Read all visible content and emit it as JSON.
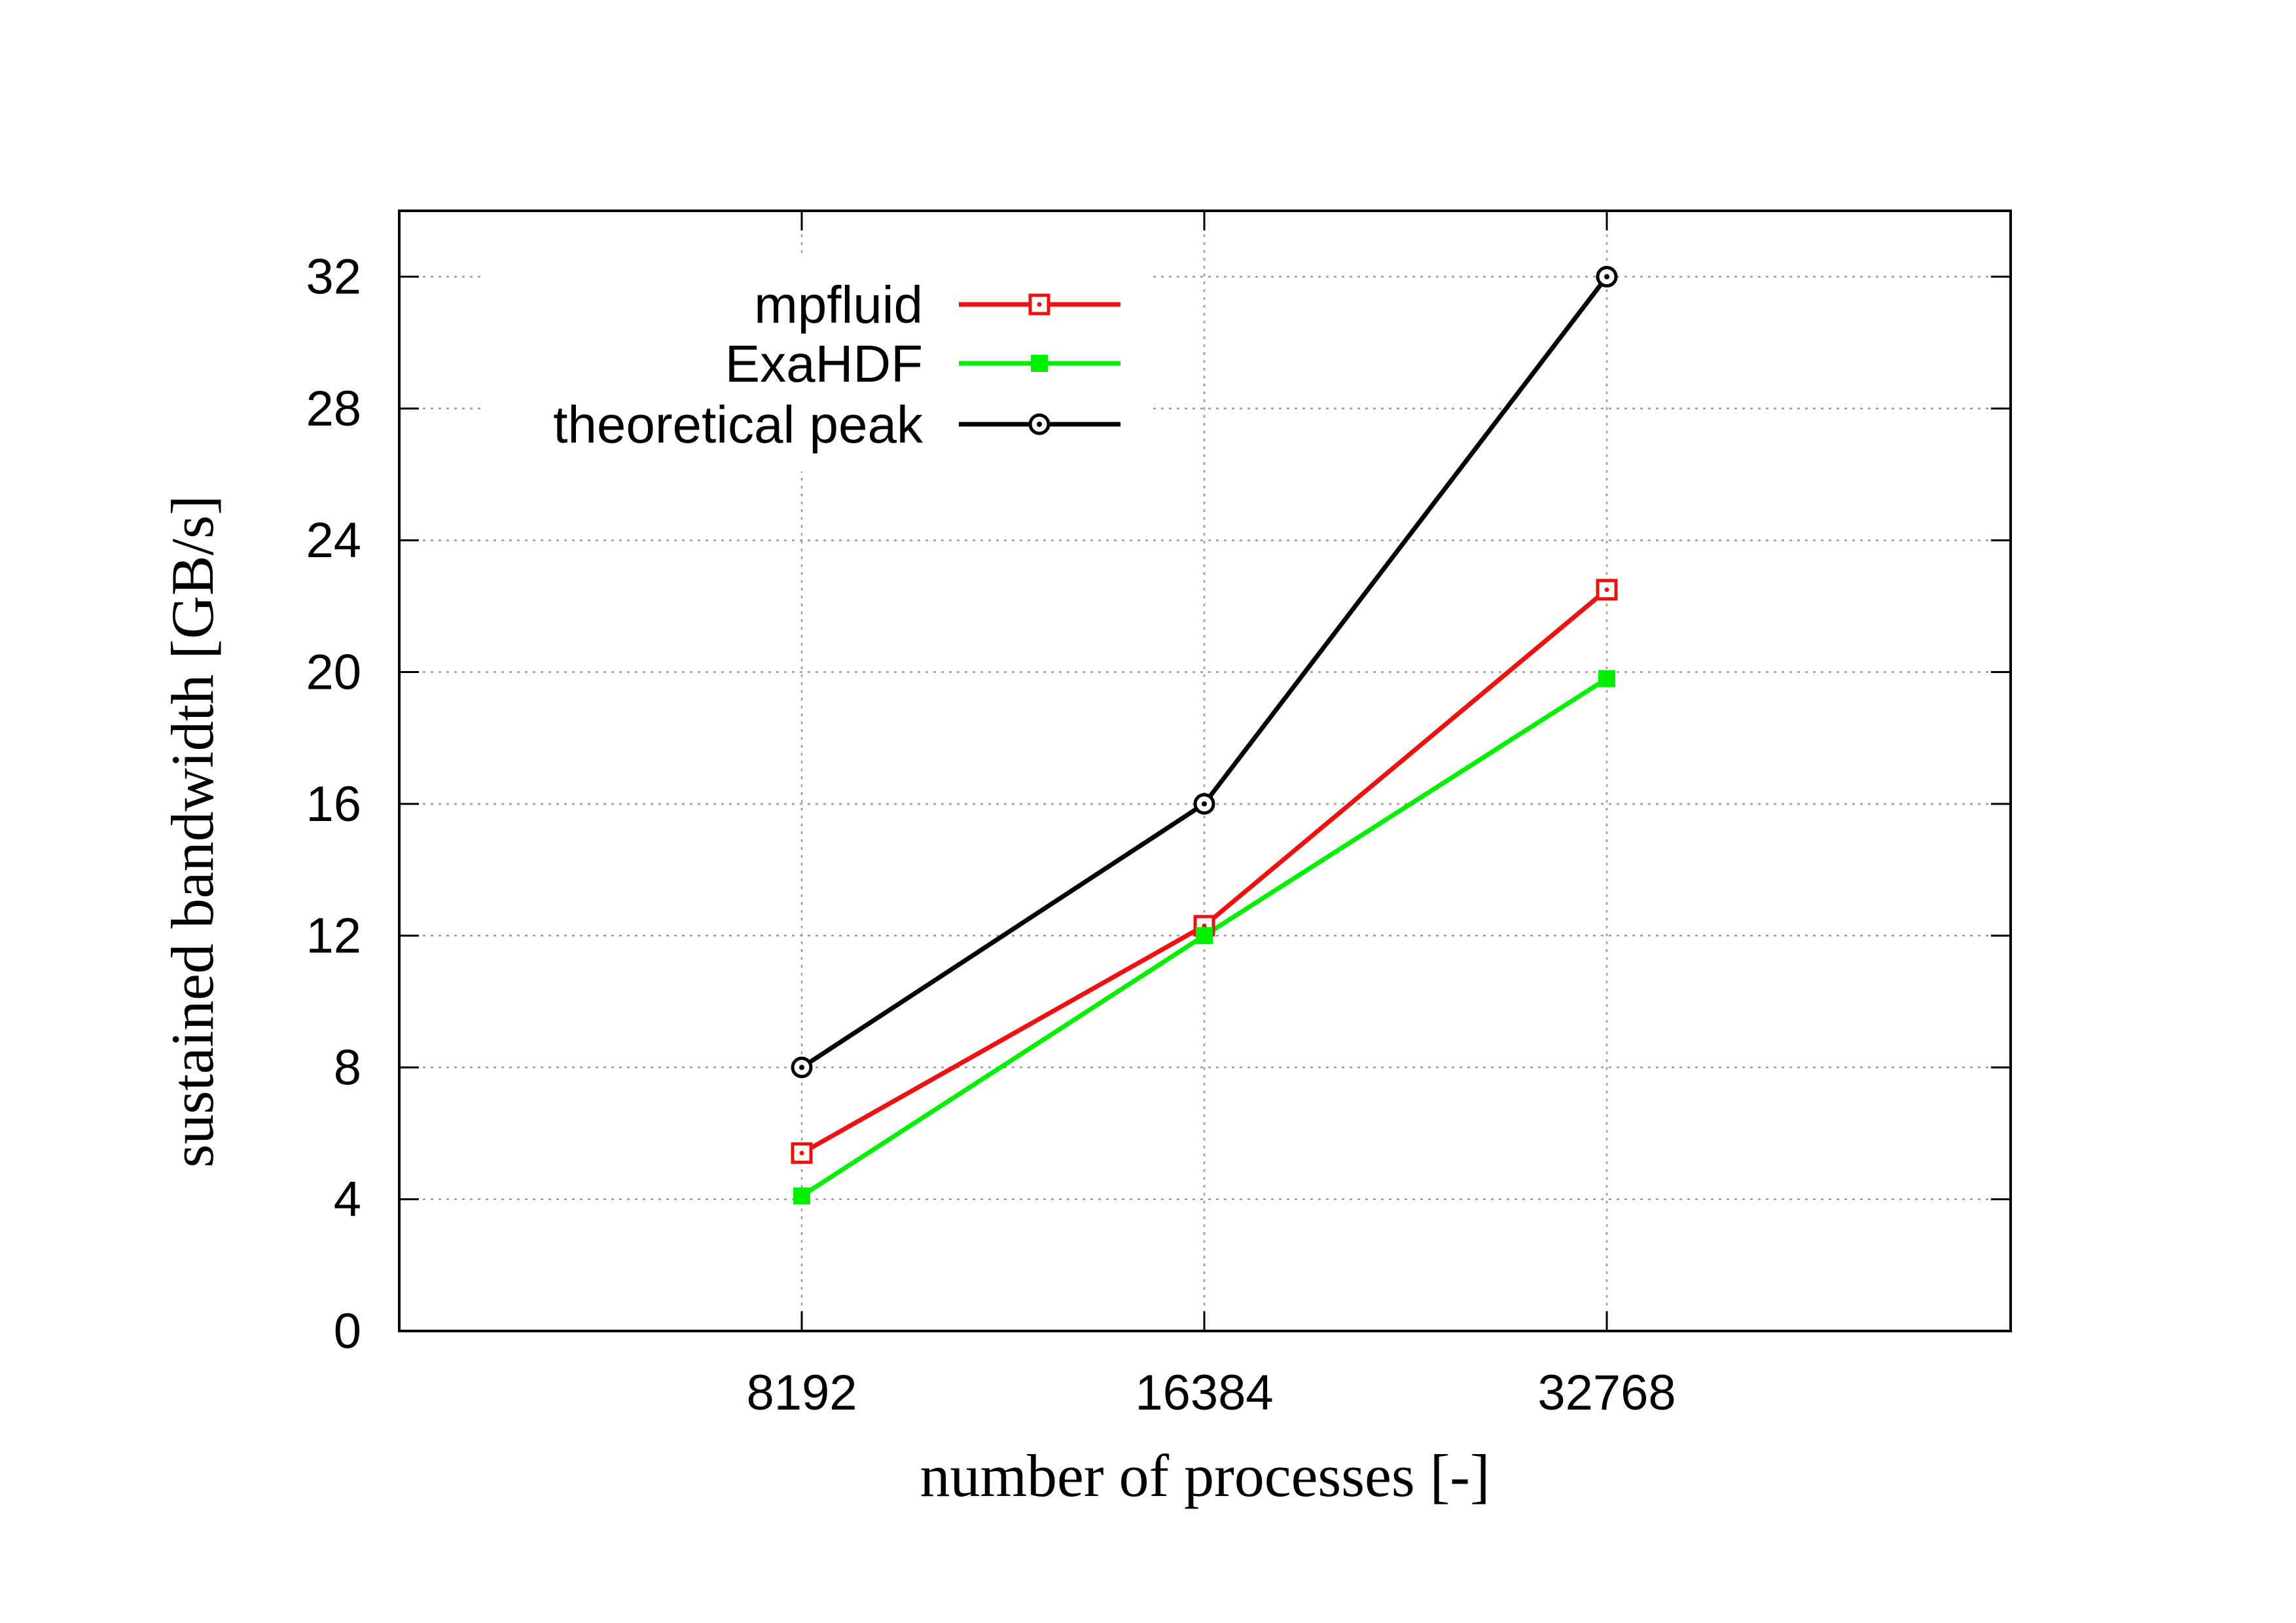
{
  "chart_data": {
    "type": "line",
    "title": "",
    "xlabel": "number of processes [-]",
    "ylabel": "sustained bandwidth [GB/s]",
    "categories": [
      "8192",
      "16384",
      "32768"
    ],
    "yticks": [
      "0",
      "4",
      "8",
      "12",
      "16",
      "20",
      "24",
      "28",
      "32"
    ],
    "ylim": [
      0,
      34
    ],
    "grid": true,
    "legend_position": "top-left",
    "series": [
      {
        "name": "mpfluid",
        "values": [
          5.4,
          12.3,
          22.5
        ],
        "color": "#ee1111",
        "marker": "open-square-dot"
      },
      {
        "name": "ExaHDF",
        "values": [
          4.1,
          12.0,
          19.8
        ],
        "color": "#00ee00",
        "marker": "filled-square"
      },
      {
        "name": "theoretical peak",
        "values": [
          8,
          16,
          32
        ],
        "color": "#000000",
        "marker": "open-circle-dot"
      }
    ]
  }
}
